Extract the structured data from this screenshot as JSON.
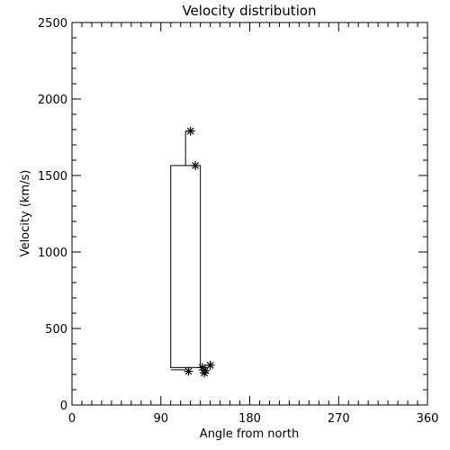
{
  "chart_data": {
    "type": "box",
    "title": "Velocity distribution",
    "xlabel": "Angle from north",
    "ylabel": "Velocity (km/s)",
    "xlim": [
      0,
      360
    ],
    "ylim": [
      0,
      2500
    ],
    "xticks": [
      0,
      90,
      180,
      270,
      360
    ],
    "xtick_labels": [
      "0",
      "90",
      "180",
      "270",
      "360"
    ],
    "yticks": [
      0,
      500,
      1000,
      1500,
      2000,
      2500
    ],
    "ytick_labels": [
      "0",
      "500",
      "1000",
      "1500",
      "2000",
      "2500"
    ],
    "x_minor_step": 10,
    "y_minor_step": 100,
    "grid": false,
    "box": {
      "x_left": 100,
      "x_right": 130,
      "whisker_x": 115,
      "min": 230,
      "q1": 245,
      "q3": 1565,
      "max": 1790
    },
    "points": [
      {
        "x": 120,
        "y": 1790
      },
      {
        "x": 125,
        "y": 1565
      },
      {
        "x": 118,
        "y": 220
      },
      {
        "x": 132,
        "y": 245
      },
      {
        "x": 135,
        "y": 225
      },
      {
        "x": 134,
        "y": 210
      },
      {
        "x": 140,
        "y": 260
      }
    ]
  }
}
